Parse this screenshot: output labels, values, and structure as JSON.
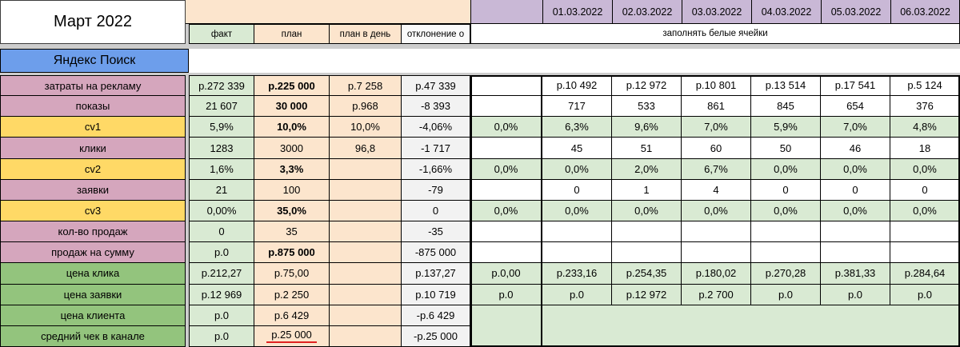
{
  "title": "Март 2022",
  "channel": "Яндекс Поиск",
  "headers": {
    "fact": "факт",
    "plan": "план",
    "plan_per_day": "план в день",
    "deviation": "отклонение о",
    "fill_note": "заполнять белые ячейки"
  },
  "dates": [
    "01.03.2022",
    "02.03.2022",
    "03.03.2022",
    "04.03.2022",
    "05.03.2022",
    "06.03.2022"
  ],
  "colors": {
    "label_pink": "#d5a6bd",
    "label_yellow": "#ffd966",
    "label_green": "#93c47d",
    "fact_bg": "#d9ead3",
    "plan_bg": "#fce5cd",
    "purple": "#c9b8d6",
    "blue": "#6d9eeb",
    "red": "#e02020"
  },
  "rows": [
    {
      "label": "затраты на рекламу",
      "color": "pink",
      "fact": "р.272 339",
      "plan": "р.225 000",
      "plan_bold": true,
      "plan_underline": false,
      "ppd": "р.7 258",
      "dev": "р.47 339",
      "summary": "",
      "summary_green": false,
      "daily": [
        "р.10 492",
        "р.12 972",
        "р.10 801",
        "р.13 514",
        "р.17 541",
        "р.5 124"
      ],
      "daily_green": false,
      "merged": false
    },
    {
      "label": "показы",
      "color": "pink",
      "fact": "21 607",
      "plan": "30 000",
      "plan_bold": true,
      "plan_underline": false,
      "ppd": "р.968",
      "dev": "-8 393",
      "summary": "",
      "summary_green": false,
      "daily": [
        "717",
        "533",
        "861",
        "845",
        "654",
        "376"
      ],
      "daily_green": false,
      "merged": false
    },
    {
      "label": "cv1",
      "color": "yellow",
      "fact": "5,9%",
      "plan": "10,0%",
      "plan_bold": true,
      "plan_underline": false,
      "ppd": "10,0%",
      "dev": "-4,06%",
      "summary": "0,0%",
      "summary_green": true,
      "daily": [
        "6,3%",
        "9,6%",
        "7,0%",
        "5,9%",
        "7,0%",
        "4,8%"
      ],
      "daily_green": true,
      "merged": false
    },
    {
      "label": "клики",
      "color": "pink",
      "fact": "1283",
      "plan": "3000",
      "plan_bold": false,
      "plan_underline": false,
      "ppd": "96,8",
      "dev": "-1 717",
      "summary": "",
      "summary_green": false,
      "daily": [
        "45",
        "51",
        "60",
        "50",
        "46",
        "18"
      ],
      "daily_green": false,
      "merged": false
    },
    {
      "label": "cv2",
      "color": "yellow",
      "fact": "1,6%",
      "plan": "3,3%",
      "plan_bold": true,
      "plan_underline": false,
      "ppd": "",
      "dev": "-1,66%",
      "summary": "0,0%",
      "summary_green": true,
      "daily": [
        "0,0%",
        "2,0%",
        "6,7%",
        "0,0%",
        "0,0%",
        "0,0%"
      ],
      "daily_green": true,
      "merged": false
    },
    {
      "label": "заявки",
      "color": "pink",
      "fact": "21",
      "plan": "100",
      "plan_bold": false,
      "plan_underline": false,
      "ppd": "",
      "dev": "-79",
      "summary": "",
      "summary_green": false,
      "daily": [
        "0",
        "1",
        "4",
        "0",
        "0",
        "0"
      ],
      "daily_green": false,
      "merged": false
    },
    {
      "label": "cv3",
      "color": "yellow",
      "fact": "0,00%",
      "plan": "35,0%",
      "plan_bold": true,
      "plan_underline": false,
      "ppd": "",
      "dev": "0",
      "summary": "0,0%",
      "summary_green": true,
      "daily": [
        "0,0%",
        "0,0%",
        "0,0%",
        "0,0%",
        "0,0%",
        "0,0%"
      ],
      "daily_green": true,
      "merged": false
    },
    {
      "label": "кол-во продаж",
      "color": "pink",
      "fact": "0",
      "plan": "35",
      "plan_bold": false,
      "plan_underline": false,
      "ppd": "",
      "dev": "-35",
      "summary": "",
      "summary_green": false,
      "daily": [
        "",
        "",
        "",
        "",
        "",
        ""
      ],
      "daily_green": false,
      "merged": false
    },
    {
      "label": "продаж на сумму",
      "color": "pink",
      "fact": "р.0",
      "plan": "р.875 000",
      "plan_bold": true,
      "plan_underline": false,
      "ppd": "",
      "dev": "-875 000",
      "summary": "",
      "summary_green": false,
      "daily": [
        "",
        "",
        "",
        "",
        "",
        ""
      ],
      "daily_green": false,
      "merged": false
    },
    {
      "label": "цена клика",
      "color": "green",
      "fact": "р.212,27",
      "plan": "р.75,00",
      "plan_bold": false,
      "plan_underline": false,
      "ppd": "",
      "dev": "р.137,27",
      "summary": "р.0,00",
      "summary_green": true,
      "daily": [
        "р.233,16",
        "р.254,35",
        "р.180,02",
        "р.270,28",
        "р.381,33",
        "р.284,64"
      ],
      "daily_green": true,
      "merged": false
    },
    {
      "label": "цена заявки",
      "color": "green",
      "fact": "р.12 969",
      "plan": "р.2 250",
      "plan_bold": false,
      "plan_underline": false,
      "ppd": "",
      "dev": "р.10 719",
      "summary": "р.0",
      "summary_green": true,
      "daily": [
        "р.0",
        "р.12 972",
        "р.2 700",
        "р.0",
        "р.0",
        "р.0"
      ],
      "daily_green": true,
      "merged": false
    },
    {
      "label": "цена клиента",
      "color": "green",
      "fact": "р.0",
      "plan": "р.6 429",
      "plan_bold": false,
      "plan_underline": false,
      "ppd": "",
      "dev": "-р.6 429",
      "summary": "",
      "summary_green": false,
      "daily": [],
      "daily_green": false,
      "merged": true
    },
    {
      "label": "средний чек в канале",
      "color": "green",
      "fact": "р.0",
      "plan": "р.25 000",
      "plan_bold": false,
      "plan_underline": true,
      "ppd": "",
      "dev": "-р.25 000",
      "summary": "",
      "summary_green": false,
      "daily": [],
      "daily_green": false,
      "merged": true
    }
  ]
}
